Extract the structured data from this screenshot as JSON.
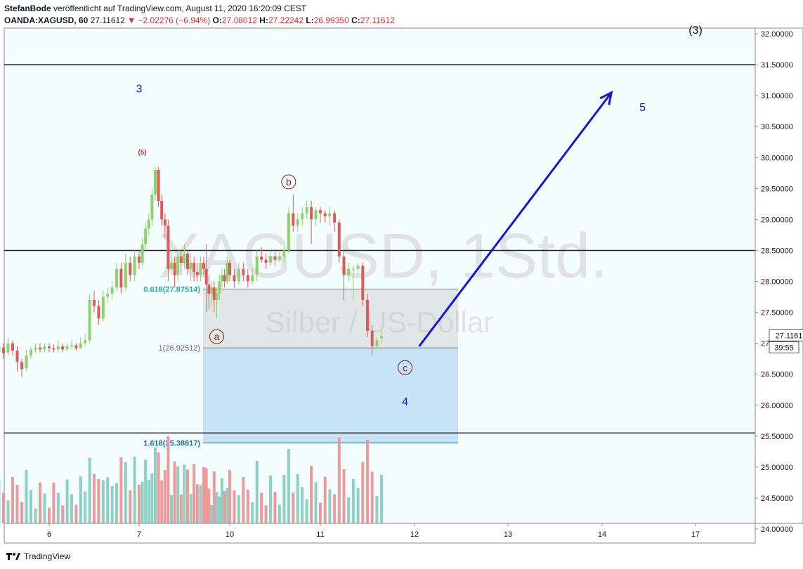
{
  "header": {
    "author": "StefanBode",
    "published": "veröffentlicht auf TradingView.com, August 11, 2020 16:20:09 CEST",
    "symbol": "OANDA:XAGUSD, 60",
    "last": "27.11612",
    "change": "−2.02276 (−6.94%)",
    "o_label": "O:",
    "o_val": "27.08012",
    "h_label": "H:",
    "h_val": "27.22242",
    "l_label": "L:",
    "l_val": "26.99350",
    "c_label": "C:",
    "c_val": "27.11612"
  },
  "watermark": {
    "title": "XAGUSD, 1Std.",
    "subtitle": "Silber / US-Dollar"
  },
  "footer": {
    "brand": "TradingView"
  },
  "colors": {
    "up": "#8fd16c",
    "down": "#e05a5a",
    "vol_up": "#8ed0c4",
    "vol_down": "#ef9a9a",
    "arrow": "#1515d8",
    "fib_blue": "rgba(144,195,240,0.45)",
    "fib_gray": "rgba(190,190,190,0.35)",
    "fib_green_line": "#26a69a",
    "fib_blue_line": "#1e6fb5"
  },
  "chart_data": {
    "type": "candlestick",
    "symbol": "OANDA:XAGUSD",
    "timeframe": "60",
    "x_ticks": [
      "6",
      "7",
      "10",
      "11",
      "12",
      "13",
      "14",
      "17"
    ],
    "y_ticks": [
      "32.00000",
      "31.50000",
      "31.00000",
      "30.50000",
      "30.00000",
      "29.50000",
      "29.00000",
      "28.50000",
      "28.00000",
      "27.50000",
      "27.00000",
      "26.50000",
      "26.00000",
      "25.50000",
      "25.00000",
      "24.50000",
      "24.00000"
    ],
    "ylim": [
      24.0,
      32.0
    ],
    "price_label": "27.11612",
    "countdown_label": "39:55",
    "horizontal_levels": [
      31.5,
      28.5,
      25.55
    ],
    "fib": {
      "level_0618": {
        "label": "0.618(27.87514)",
        "price": 27.87514
      },
      "level_1": {
        "label": "1(26.92512)",
        "price": 26.92512
      },
      "level_1618": {
        "label": "1.618(25.38817)",
        "price": 25.38817
      }
    },
    "wave_labels": [
      {
        "text": "(3)",
        "price": 32.0,
        "day": 17.0
      },
      {
        "text": "3",
        "price": 31.05,
        "day": 7.0
      },
      {
        "text": "5",
        "price": 30.75,
        "day": 15.3
      },
      {
        "text": "(5)",
        "price": 30.05,
        "day": 7.05
      },
      {
        "text": "b",
        "price": 29.55,
        "day": 10.65
      },
      {
        "text": "a",
        "price": 27.05,
        "day": 9.75
      },
      {
        "text": "c",
        "price": 26.55,
        "day": 11.9
      },
      {
        "text": "4",
        "price": 26.0,
        "day": 11.9
      }
    ],
    "arrow": {
      "from": {
        "day": 12.05,
        "price": 26.95
      },
      "to": {
        "day": 14.3,
        "price": 31.05
      }
    },
    "candles": [
      [
        5.4,
        26.9,
        26.88,
        27.05,
        26.7
      ],
      [
        5.45,
        26.86,
        26.95,
        27.1,
        26.75
      ],
      [
        5.5,
        26.93,
        26.84,
        27.0,
        26.75
      ],
      [
        5.55,
        26.85,
        27.0,
        27.1,
        26.8
      ],
      [
        5.6,
        27.0,
        26.88,
        27.05,
        26.8
      ],
      [
        5.65,
        26.88,
        26.7,
        26.95,
        26.55
      ],
      [
        5.7,
        26.7,
        26.58,
        26.75,
        26.45
      ],
      [
        5.75,
        26.6,
        26.8,
        26.9,
        26.55
      ],
      [
        5.8,
        26.8,
        26.9,
        26.95,
        26.75
      ],
      [
        5.85,
        26.9,
        26.93,
        27.0,
        26.85
      ],
      [
        5.9,
        26.93,
        26.9,
        27.0,
        26.85
      ],
      [
        5.95,
        26.9,
        26.95,
        27.0,
        26.85
      ],
      [
        6.0,
        26.95,
        26.92,
        27.0,
        26.85
      ],
      [
        6.05,
        26.92,
        26.9,
        26.98,
        26.85
      ],
      [
        6.1,
        26.9,
        26.95,
        27.05,
        26.85
      ],
      [
        6.15,
        26.95,
        26.9,
        27.0,
        26.85
      ],
      [
        6.2,
        26.9,
        26.95,
        27.0,
        26.88
      ],
      [
        6.25,
        26.95,
        26.97,
        27.05,
        26.9
      ],
      [
        6.3,
        26.97,
        26.92,
        27.0,
        26.88
      ],
      [
        6.35,
        26.92,
        27.0,
        27.1,
        26.9
      ],
      [
        6.4,
        27.0,
        27.05,
        27.15,
        26.95
      ],
      [
        6.45,
        27.05,
        27.7,
        27.8,
        27.0
      ],
      [
        6.5,
        27.7,
        27.6,
        27.85,
        27.5
      ],
      [
        6.55,
        27.6,
        27.4,
        27.7,
        27.3
      ],
      [
        6.6,
        27.4,
        27.75,
        27.85,
        27.35
      ],
      [
        6.65,
        27.75,
        27.8,
        27.9,
        27.65
      ],
      [
        6.7,
        27.8,
        27.9,
        28.0,
        27.7
      ],
      [
        6.75,
        27.9,
        28.2,
        28.3,
        27.85
      ],
      [
        6.8,
        28.2,
        27.9,
        28.3,
        27.8
      ],
      [
        6.85,
        27.9,
        28.3,
        28.45,
        27.85
      ],
      [
        6.9,
        28.3,
        28.1,
        28.4,
        28.0
      ],
      [
        6.95,
        28.1,
        28.4,
        28.5,
        28.0
      ],
      [
        7.0,
        28.4,
        28.3,
        28.5,
        28.2
      ],
      [
        7.05,
        28.3,
        28.6,
        28.7,
        28.25
      ],
      [
        7.1,
        28.6,
        28.85,
        28.95,
        28.5
      ],
      [
        7.15,
        28.85,
        29.0,
        29.1,
        28.75
      ],
      [
        7.2,
        29.0,
        29.4,
        29.5,
        28.9
      ],
      [
        7.25,
        29.4,
        29.8,
        29.85,
        29.3
      ],
      [
        7.3,
        29.8,
        29.3,
        29.85,
        29.2
      ],
      [
        7.35,
        29.3,
        29.0,
        29.4,
        28.9
      ],
      [
        7.4,
        29.0,
        28.9,
        29.1,
        28.7
      ],
      [
        7.45,
        28.9,
        28.2,
        29.0,
        28.0
      ],
      [
        7.5,
        28.2,
        28.3,
        28.5,
        28.1
      ],
      [
        7.55,
        28.3,
        28.1,
        28.4,
        27.9
      ],
      [
        7.6,
        28.1,
        28.4,
        28.5,
        28.0
      ],
      [
        7.65,
        28.4,
        28.3,
        28.5,
        28.1
      ],
      [
        7.7,
        28.3,
        28.45,
        28.6,
        28.2
      ],
      [
        7.75,
        28.45,
        28.2,
        28.5,
        28.1
      ],
      [
        7.8,
        28.2,
        28.3,
        28.45,
        28.0
      ],
      [
        7.85,
        28.3,
        28.15,
        28.4,
        28.0
      ],
      [
        7.9,
        28.15,
        28.1,
        28.3,
        28.0
      ],
      [
        7.95,
        28.1,
        28.3,
        28.4,
        28.0
      ],
      [
        8.0,
        28.3,
        28.2,
        28.4,
        28.1
      ],
      [
        9.55,
        28.2,
        27.95,
        28.6,
        27.5
      ],
      [
        9.6,
        27.95,
        27.8,
        28.1,
        27.55
      ],
      [
        9.65,
        27.8,
        27.9,
        28.0,
        27.6
      ],
      [
        9.7,
        27.9,
        27.7,
        28.0,
        27.5
      ],
      [
        9.75,
        27.7,
        27.8,
        27.9,
        27.4
      ],
      [
        9.8,
        27.8,
        28.0,
        28.1,
        27.7
      ],
      [
        9.85,
        28.0,
        28.1,
        28.2,
        27.9
      ],
      [
        9.9,
        28.1,
        28.0,
        28.2,
        27.9
      ],
      [
        9.95,
        28.0,
        28.3,
        28.4,
        27.95
      ],
      [
        10.0,
        28.3,
        28.1,
        28.35,
        28.0
      ],
      [
        10.05,
        28.1,
        28.0,
        28.2,
        27.9
      ],
      [
        10.1,
        28.0,
        28.2,
        28.3,
        27.95
      ],
      [
        10.15,
        28.2,
        28.1,
        28.3,
        28.0
      ],
      [
        10.2,
        28.1,
        28.0,
        28.2,
        27.9
      ],
      [
        10.25,
        28.0,
        28.1,
        28.2,
        27.95
      ],
      [
        10.3,
        28.1,
        28.4,
        28.5,
        28.0
      ],
      [
        10.35,
        28.4,
        28.35,
        28.55,
        28.3
      ],
      [
        10.4,
        28.35,
        28.3,
        28.45,
        28.2
      ],
      [
        10.45,
        28.3,
        28.4,
        28.5,
        28.25
      ],
      [
        10.5,
        28.4,
        28.35,
        28.5,
        28.25
      ],
      [
        10.55,
        28.35,
        28.4,
        28.5,
        28.3
      ],
      [
        10.6,
        28.4,
        28.5,
        28.6,
        28.3
      ],
      [
        10.65,
        28.5,
        29.1,
        29.2,
        28.45
      ],
      [
        10.7,
        29.1,
        28.9,
        29.4,
        28.8
      ],
      [
        10.75,
        28.9,
        29.0,
        29.1,
        28.8
      ],
      [
        10.8,
        29.0,
        29.1,
        29.2,
        28.9
      ],
      [
        10.85,
        29.1,
        29.2,
        29.3,
        29.0
      ],
      [
        10.9,
        29.2,
        29.0,
        29.3,
        28.6
      ],
      [
        10.95,
        29.0,
        29.15,
        29.2,
        28.9
      ],
      [
        11.0,
        29.15,
        29.1,
        29.2,
        28.95
      ],
      [
        11.05,
        29.1,
        29.05,
        29.15,
        28.95
      ],
      [
        11.1,
        29.05,
        29.1,
        29.2,
        28.9
      ],
      [
        11.15,
        29.1,
        28.95,
        29.15,
        28.8
      ],
      [
        11.2,
        28.95,
        28.4,
        29.0,
        28.3
      ],
      [
        11.25,
        28.4,
        28.1,
        28.5,
        27.7
      ],
      [
        11.3,
        28.1,
        28.2,
        28.3,
        28.0
      ],
      [
        11.35,
        28.2,
        28.2,
        28.25,
        27.7
      ],
      [
        11.4,
        28.2,
        28.25,
        28.3,
        28.1
      ],
      [
        11.45,
        28.25,
        27.7,
        28.3,
        27.6
      ],
      [
        11.5,
        27.7,
        27.2,
        27.8,
        27.1
      ],
      [
        11.55,
        27.2,
        26.95,
        27.3,
        26.8
      ],
      [
        11.6,
        26.95,
        27.05,
        27.1,
        26.9
      ],
      [
        11.65,
        27.08,
        27.11612,
        27.22242,
        26.9935
      ]
    ],
    "volume_note": "volume histogram shown at bottom"
  }
}
